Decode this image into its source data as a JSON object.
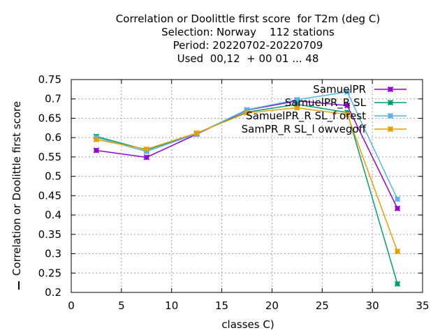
{
  "title_lines": [
    "Correlation or Doolittle first score  for T2m (deg C)",
    "Selection: Norway    112 stations",
    "Period: 20220702-20220709",
    "Used  00,12  + 00 01 ... 48"
  ],
  "chart_data": {
    "type": "line",
    "xlabel": "classes C)",
    "ylabel": "Correlation or Doolittle first score",
    "xlim": [
      0,
      35
    ],
    "ylim": [
      0.2,
      0.75
    ],
    "xticks": [
      0,
      5,
      10,
      15,
      20,
      25,
      30,
      35
    ],
    "yticks": [
      0.2,
      0.25,
      0.3,
      0.35,
      0.4,
      0.45,
      0.5,
      0.55,
      0.6,
      0.65,
      0.7,
      0.75
    ],
    "ytick_labels": [
      "0.2",
      "0.25",
      "0.3",
      "0.35",
      "0.4",
      "0.45",
      "0.5",
      "0.55",
      "0.6",
      "0.65",
      "0.7",
      "0.75"
    ],
    "grid": true,
    "legend_position": "top-right",
    "x": [
      2.5,
      7.5,
      12.5,
      17.5,
      22.5,
      27.5,
      32.5
    ],
    "series": [
      {
        "name": "SamuelPR",
        "color": "#9400d3",
        "values": [
          0.567,
          0.549,
          0.609,
          0.671,
          0.695,
          0.683,
          0.417
        ]
      },
      {
        "name": "SamuelPR_R SL",
        "color": "#009e73",
        "values": [
          0.603,
          0.568,
          0.611,
          0.666,
          0.686,
          0.665,
          0.222
        ]
      },
      {
        "name": "SamuelPR_R SL_f orest",
        "color": "#56b4e9",
        "values": [
          0.6,
          0.564,
          0.61,
          0.672,
          0.698,
          0.718,
          0.441
        ]
      },
      {
        "name": "SamPR_R SL_l owvegoff",
        "color": "#e69f00",
        "values": [
          0.595,
          0.57,
          0.612,
          0.664,
          0.677,
          0.66,
          0.306
        ]
      }
    ]
  }
}
